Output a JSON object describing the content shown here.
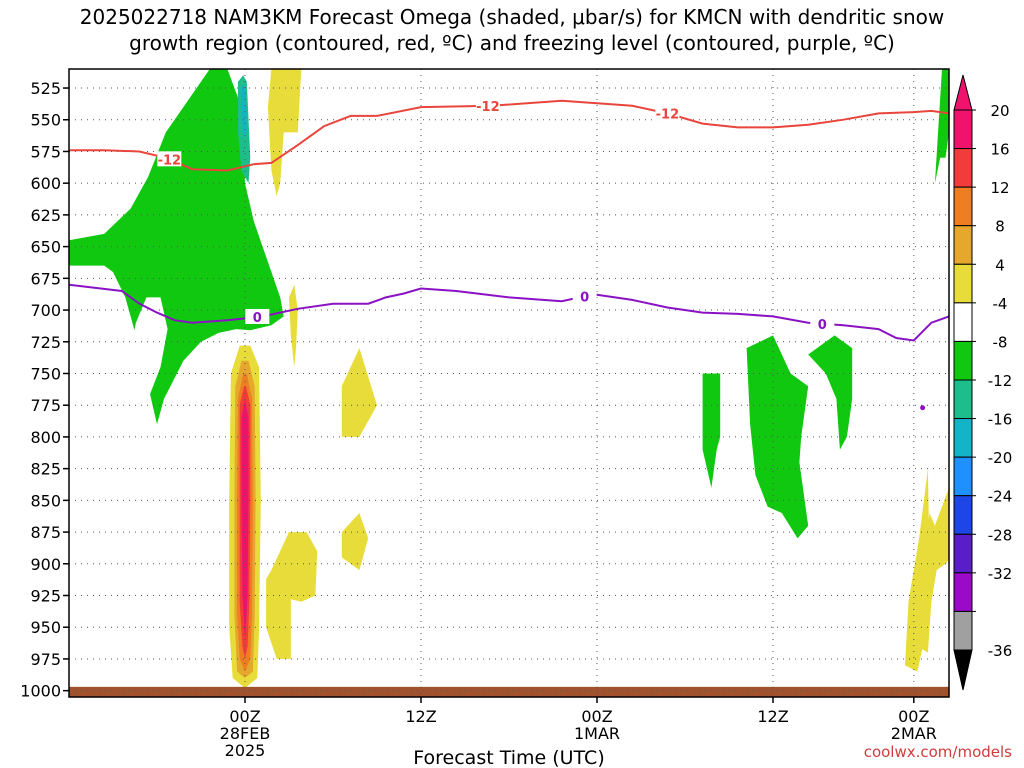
{
  "title_line1": "2025022718 NAM3KM Forecast Omega (shaded, μbar/s) for KMCN with dendritic snow",
  "title_line2": "growth region (contoured, red, ºC) and freezing level (contoured, purple, ºC)",
  "credit": "coolwx.com/models",
  "colors": {
    "snow_contour": "#e8453c",
    "freezing_contour": "#8a12c4",
    "ground": "#a0522d"
  },
  "chart_data": {
    "type": "heatmap",
    "xlabel": "Forecast Time (UTC)",
    "x_range_hours": [
      -10,
      40
    ],
    "x_ticks": [
      {
        "h": 0,
        "l1": "00Z",
        "l2": "28FEB",
        "l3": "2025"
      },
      {
        "h": 10,
        "l1": "12Z",
        "l2": "",
        "l3": ""
      },
      {
        "h": 20,
        "l1": "00Z",
        "l2": "1MAR",
        "l3": ""
      },
      {
        "h": 30,
        "l1": "12Z",
        "l2": "",
        "l3": ""
      },
      {
        "h": 38,
        "l1": "00Z",
        "l2": "2MAR",
        "l3": ""
      }
    ],
    "y_ticks": [
      525,
      550,
      575,
      600,
      625,
      650,
      675,
      700,
      725,
      750,
      775,
      800,
      825,
      850,
      875,
      900,
      925,
      950,
      975,
      1000
    ],
    "y_range_hpa": [
      510,
      1005
    ],
    "grid": "dotted",
    "colorbar": {
      "labels": [
        "20",
        "16",
        "12",
        "8",
        "4",
        "-4",
        "-8",
        "-12",
        "-16",
        "-20",
        "-24",
        "-28",
        "-32",
        "-36"
      ],
      "colors": [
        "#f0136e",
        "#f23c3c",
        "#ef7d22",
        "#e6a82c",
        "#e8dc3a",
        "#ffffff",
        "#10c810",
        "#1ebe8c",
        "#14b4c8",
        "#1e90ff",
        "#1e46e6",
        "#5a1ec8",
        "#9a0ac8",
        "#a0a0a0"
      ]
    },
    "series": [
      {
        "name": "-12",
        "label_positions_h": [
          -4.3,
          13.8,
          24.0
        ],
        "points": [
          [
            -10,
            574
          ],
          [
            -8,
            574
          ],
          [
            -6,
            575
          ],
          [
            -4.5,
            580
          ],
          [
            -3,
            589
          ],
          [
            -1,
            590
          ],
          [
            0.5,
            585
          ],
          [
            1.5,
            584
          ],
          [
            3,
            570
          ],
          [
            4.5,
            555
          ],
          [
            6,
            547
          ],
          [
            7.5,
            547
          ],
          [
            10,
            540
          ],
          [
            14,
            539
          ],
          [
            18,
            535
          ],
          [
            22,
            539
          ],
          [
            24,
            545
          ],
          [
            26,
            553
          ],
          [
            28,
            556
          ],
          [
            30,
            556
          ],
          [
            32,
            554
          ],
          [
            34,
            550
          ],
          [
            36,
            545
          ],
          [
            38,
            544
          ],
          [
            39,
            543
          ],
          [
            40,
            545
          ]
        ]
      },
      {
        "name": "0",
        "label_positions_h": [
          0.7,
          19.3,
          32.8
        ],
        "points": [
          [
            -10,
            680
          ],
          [
            -7,
            685
          ],
          [
            -6,
            695
          ],
          [
            -5,
            702
          ],
          [
            -4,
            708
          ],
          [
            -3,
            710
          ],
          [
            -1,
            708
          ],
          [
            1,
            705
          ],
          [
            3,
            699
          ],
          [
            5,
            695
          ],
          [
            7,
            695
          ],
          [
            8,
            690
          ],
          [
            9,
            687
          ],
          [
            10,
            683
          ],
          [
            12,
            685
          ],
          [
            15,
            690
          ],
          [
            18,
            693
          ],
          [
            19,
            690
          ],
          [
            20,
            688
          ],
          [
            22,
            692
          ],
          [
            24,
            698
          ],
          [
            26,
            702
          ],
          [
            28,
            703
          ],
          [
            30,
            705
          ],
          [
            32,
            710
          ],
          [
            34,
            712
          ],
          [
            36,
            715
          ],
          [
            37,
            722
          ],
          [
            38,
            724
          ],
          [
            39,
            710
          ],
          [
            40,
            705
          ]
        ]
      }
    ],
    "shaded_regions": [
      {
        "color": "#10c810",
        "level": -4,
        "points": [
          [
            -10,
            645
          ],
          [
            -8,
            640
          ],
          [
            -6.5,
            620
          ],
          [
            -5.5,
            595
          ],
          [
            -4.5,
            560
          ],
          [
            -3,
            530
          ],
          [
            -2,
            510
          ],
          [
            -1,
            510
          ],
          [
            -0.2,
            540
          ],
          [
            0,
            600
          ],
          [
            0.5,
            630
          ],
          [
            1,
            650
          ],
          [
            1.5,
            670
          ],
          [
            2,
            690
          ],
          [
            2.2,
            705
          ],
          [
            1.5,
            712
          ],
          [
            0.3,
            716
          ],
          [
            -0.5,
            715
          ],
          [
            -1.5,
            718
          ],
          [
            -2.5,
            725
          ],
          [
            -3.5,
            740
          ],
          [
            -4.6,
            770
          ],
          [
            -5,
            790
          ],
          [
            -5.5,
            760
          ],
          [
            -6.2,
            720
          ],
          [
            -6.8,
            690
          ],
          [
            -7.5,
            670
          ],
          [
            -8,
            665
          ],
          [
            -9,
            665
          ],
          [
            -10,
            665
          ]
        ]
      },
      {
        "color": "#ffffff",
        "level": 4,
        "points": [
          [
            -6.6,
            740
          ],
          [
            -6.2,
            710
          ],
          [
            -5.6,
            690
          ],
          [
            -4.8,
            690
          ],
          [
            -4.4,
            715
          ],
          [
            -4.8,
            745
          ],
          [
            -5.5,
            770
          ],
          [
            -6.1,
            765
          ]
        ]
      },
      {
        "color": "#1ebe8c",
        "level": -8,
        "points": [
          [
            -0.4,
            520
          ],
          [
            -0.1,
            515
          ],
          [
            0.1,
            520
          ],
          [
            0.3,
            580
          ],
          [
            0.2,
            600
          ],
          [
            -0.2,
            590
          ],
          [
            -0.4,
            560
          ]
        ]
      },
      {
        "color": "#14b4c8",
        "level": -12,
        "points": [
          [
            -0.25,
            525
          ],
          [
            -0.05,
            522
          ],
          [
            0.05,
            530
          ],
          [
            0.1,
            560
          ],
          [
            -0.05,
            565
          ],
          [
            -0.2,
            550
          ]
        ]
      },
      {
        "color": "#e8dc3a",
        "level": 4,
        "points": [
          [
            1.5,
            510
          ],
          [
            3.2,
            510
          ],
          [
            3,
            560
          ],
          [
            2.2,
            560
          ],
          [
            2,
            600
          ],
          [
            1.8,
            610
          ],
          [
            1.5,
            590
          ],
          [
            1.3,
            540
          ]
        ]
      },
      {
        "color": "#e8dc3a",
        "level": 4,
        "points": [
          [
            2.5,
            690
          ],
          [
            2.8,
            680
          ],
          [
            3,
            700
          ],
          [
            2.9,
            730
          ],
          [
            2.8,
            745
          ],
          [
            2.6,
            720
          ]
        ]
      },
      {
        "color": "#e8dc3a",
        "level": 4,
        "points": [
          [
            5.5,
            760
          ],
          [
            6.5,
            730
          ],
          [
            7.5,
            775
          ],
          [
            6.5,
            800
          ],
          [
            5.5,
            800
          ]
        ]
      },
      {
        "color": "#e8dc3a",
        "level": 4,
        "points": [
          [
            5.5,
            875
          ],
          [
            6.5,
            860
          ],
          [
            7,
            880
          ],
          [
            6.5,
            905
          ],
          [
            5.5,
            895
          ]
        ]
      },
      {
        "color": "#e8dc3a",
        "level": 4,
        "points": [
          [
            1.2,
            912
          ],
          [
            1.5,
            905
          ],
          [
            2,
            890
          ],
          [
            2.5,
            875
          ],
          [
            3.5,
            875
          ],
          [
            4.1,
            890
          ],
          [
            4,
            925
          ],
          [
            3.2,
            930
          ],
          [
            2.6,
            928
          ],
          [
            2.6,
            975
          ],
          [
            1.8,
            975
          ],
          [
            1.2,
            950
          ]
        ]
      },
      {
        "color": "#e8dc3a",
        "level": 4,
        "points": [
          [
            -0.8,
            750
          ],
          [
            -0.3,
            728
          ],
          [
            0.3,
            728
          ],
          [
            0.8,
            745
          ],
          [
            0.9,
            850
          ],
          [
            0.8,
            950
          ],
          [
            0.7,
            990
          ],
          [
            0,
            998
          ],
          [
            -0.7,
            990
          ],
          [
            -0.9,
            950
          ],
          [
            -0.9,
            850
          ]
        ]
      },
      {
        "color": "#e6a82c",
        "level": 8,
        "points": [
          [
            -0.55,
            760
          ],
          [
            -0.2,
            740
          ],
          [
            0.2,
            740
          ],
          [
            0.55,
            760
          ],
          [
            0.6,
            850
          ],
          [
            0.55,
            940
          ],
          [
            0.45,
            985
          ],
          [
            0,
            990
          ],
          [
            -0.45,
            985
          ],
          [
            -0.6,
            940
          ],
          [
            -0.6,
            850
          ]
        ]
      },
      {
        "color": "#ef7d22",
        "level": 12,
        "points": [
          [
            -0.4,
            770
          ],
          [
            -0.1,
            750
          ],
          [
            0.1,
            750
          ],
          [
            0.4,
            770
          ],
          [
            0.45,
            850
          ],
          [
            0.4,
            940
          ],
          [
            0.3,
            975
          ],
          [
            0,
            985
          ],
          [
            -0.3,
            975
          ],
          [
            -0.45,
            940
          ],
          [
            -0.45,
            850
          ]
        ]
      },
      {
        "color": "#f23c3c",
        "level": 16,
        "points": [
          [
            -0.3,
            775
          ],
          [
            -0.05,
            760
          ],
          [
            0.05,
            760
          ],
          [
            0.3,
            775
          ],
          [
            0.3,
            850
          ],
          [
            0.25,
            930
          ],
          [
            0.15,
            965
          ],
          [
            0,
            975
          ],
          [
            -0.15,
            965
          ],
          [
            -0.3,
            930
          ],
          [
            -0.3,
            850
          ]
        ]
      },
      {
        "color": "#f0136e",
        "level": 20,
        "points": [
          [
            -0.2,
            785
          ],
          [
            0,
            770
          ],
          [
            0.2,
            785
          ],
          [
            0.2,
            850
          ],
          [
            0.15,
            925
          ],
          [
            0,
            960
          ],
          [
            -0.15,
            925
          ],
          [
            -0.2,
            850
          ]
        ]
      },
      {
        "color": "#10c810",
        "level": -4,
        "points": [
          [
            26,
            750
          ],
          [
            27,
            750
          ],
          [
            27,
            800
          ],
          [
            26.8,
            810
          ],
          [
            26.5,
            840
          ],
          [
            26,
            810
          ]
        ]
      },
      {
        "color": "#10c810",
        "level": -4,
        "points": [
          [
            28.5,
            730
          ],
          [
            30,
            720
          ],
          [
            31,
            750
          ],
          [
            32,
            760
          ],
          [
            31.6,
            800
          ],
          [
            31.5,
            820
          ],
          [
            32,
            870
          ],
          [
            31.4,
            880
          ],
          [
            30.5,
            860
          ],
          [
            29.7,
            855
          ],
          [
            29,
            830
          ],
          [
            28.7,
            790
          ]
        ]
      },
      {
        "color": "#10c810",
        "level": -4,
        "points": [
          [
            32,
            735
          ],
          [
            33.5,
            720
          ],
          [
            34.5,
            730
          ],
          [
            34.5,
            770
          ],
          [
            34.2,
            800
          ],
          [
            33.8,
            810
          ],
          [
            33.6,
            770
          ],
          [
            33,
            750
          ]
        ]
      },
      {
        "color": "#10c810",
        "level": -4,
        "points": [
          [
            39.2,
            600
          ],
          [
            39.6,
            510
          ],
          [
            40,
            510
          ],
          [
            40,
            560
          ],
          [
            39.8,
            580
          ],
          [
            39.5,
            580
          ]
        ]
      },
      {
        "color": "#e8dc3a",
        "level": 4,
        "points": [
          [
            37.5,
            980
          ],
          [
            37.7,
            930
          ],
          [
            38.3,
            880
          ],
          [
            38.8,
            825
          ],
          [
            38.9,
            900
          ],
          [
            38.6,
            960
          ],
          [
            38.2,
            985
          ]
        ]
      },
      {
        "color": "#e8dc3a",
        "level": 4,
        "points": [
          [
            39.2,
            870
          ],
          [
            40,
            840
          ],
          [
            40.4,
            848
          ],
          [
            40.4,
            890
          ],
          [
            39.8,
            900
          ],
          [
            39.3,
            905
          ],
          [
            39,
            930
          ],
          [
            38.8,
            970
          ],
          [
            38.2,
            965
          ],
          [
            38.4,
            910
          ],
          [
            38.7,
            880
          ],
          [
            38.9,
            860
          ]
        ]
      }
    ],
    "ground_hpa": 997,
    "dot": {
      "h": 38.5,
      "p": 777
    }
  }
}
